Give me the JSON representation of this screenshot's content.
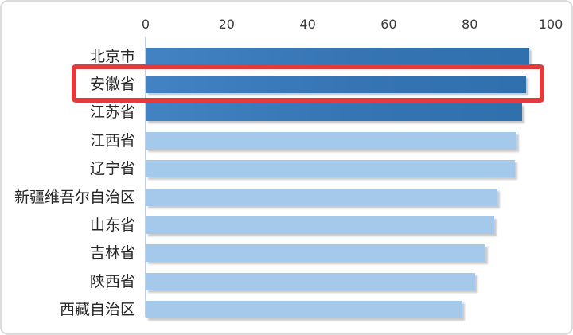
{
  "chart_data": {
    "type": "bar",
    "orientation": "horizontal",
    "title": "",
    "xlabel": "",
    "ylabel": "",
    "categories": [
      "北京市",
      "安徽省",
      "江苏省",
      "江西省",
      "辽宁省",
      "新疆维吾尔自治区",
      "山东省",
      "吉林省",
      "陕西省",
      "西藏自治区"
    ],
    "values": [
      94.7,
      94.0,
      92.9,
      91.6,
      91.1,
      86.8,
      86.1,
      83.9,
      81.3,
      78.2
    ],
    "xlim": [
      0,
      100
    ],
    "x_ticks": [
      "0",
      "20",
      "40",
      "60",
      "80",
      "100"
    ],
    "x_tick_values": [
      0,
      20,
      40,
      60,
      80,
      100
    ],
    "axis_position": "top",
    "grid": false,
    "legend": false,
    "dark_row_count": 3,
    "colors": {
      "bar_dark": "#3b7cbe",
      "bar_light": "#a5c9eb",
      "axis_line": "#c2d2e2",
      "tick_text": "#3a3a3a",
      "label_text": "#262626",
      "highlight_red": "#e23b3d"
    },
    "highlight": {
      "category": "安徽省",
      "index": 1
    }
  }
}
